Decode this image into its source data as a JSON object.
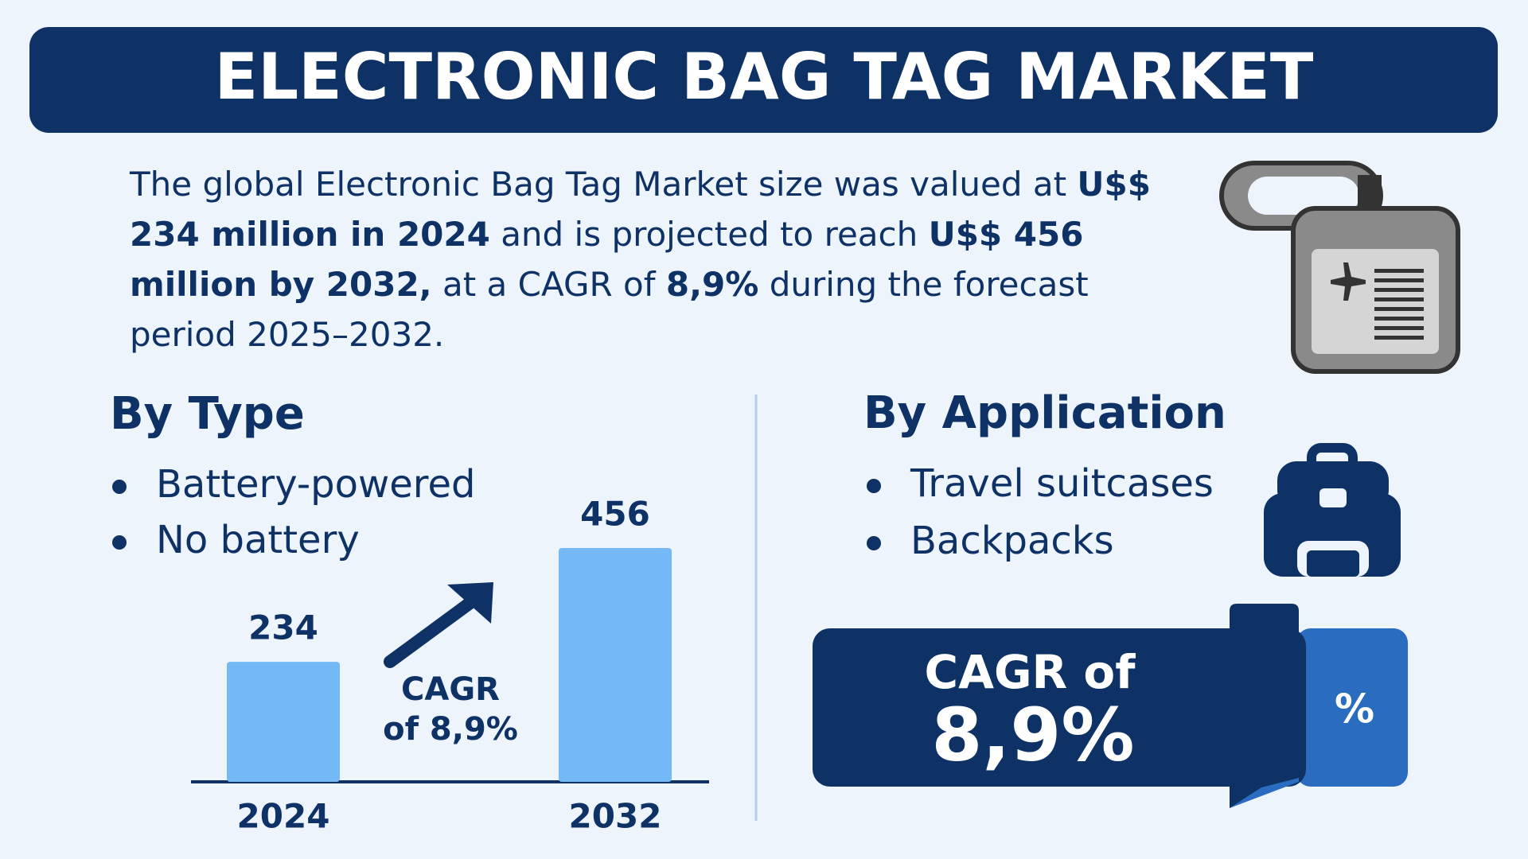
{
  "header": {
    "title": "ELECTRONIC BAG TAG MARKET"
  },
  "intro": {
    "segments": [
      {
        "text": "The global Electronic Bag Tag Market size was valued at ",
        "bold": false
      },
      {
        "text": "U$$ 234 million in 2024",
        "bold": true
      },
      {
        "text": " and is projected to reach ",
        "bold": false
      },
      {
        "text": "U$$ 456 million by 2032,",
        "bold": true
      },
      {
        "text": " at a CAGR of ",
        "bold": false
      },
      {
        "text": "8,9%",
        "bold": true
      },
      {
        "text": " during the forecast period 2025–2032.",
        "bold": false
      }
    ]
  },
  "by_type": {
    "title": "By Type",
    "items": [
      "Battery-powered",
      "No battery"
    ]
  },
  "chart_data": {
    "type": "bar",
    "categories": [
      "2024",
      "2032"
    ],
    "values": [
      234,
      456
    ],
    "color": "#74b9f5",
    "annotation": [
      "CAGR",
      "of 8,9%"
    ]
  },
  "by_application": {
    "title": "By Application",
    "items": [
      "Travel suitcases",
      "Backpacks"
    ]
  },
  "cagr_box": {
    "label": "CAGR of",
    "value": "8,9%",
    "ribbon": "%"
  }
}
